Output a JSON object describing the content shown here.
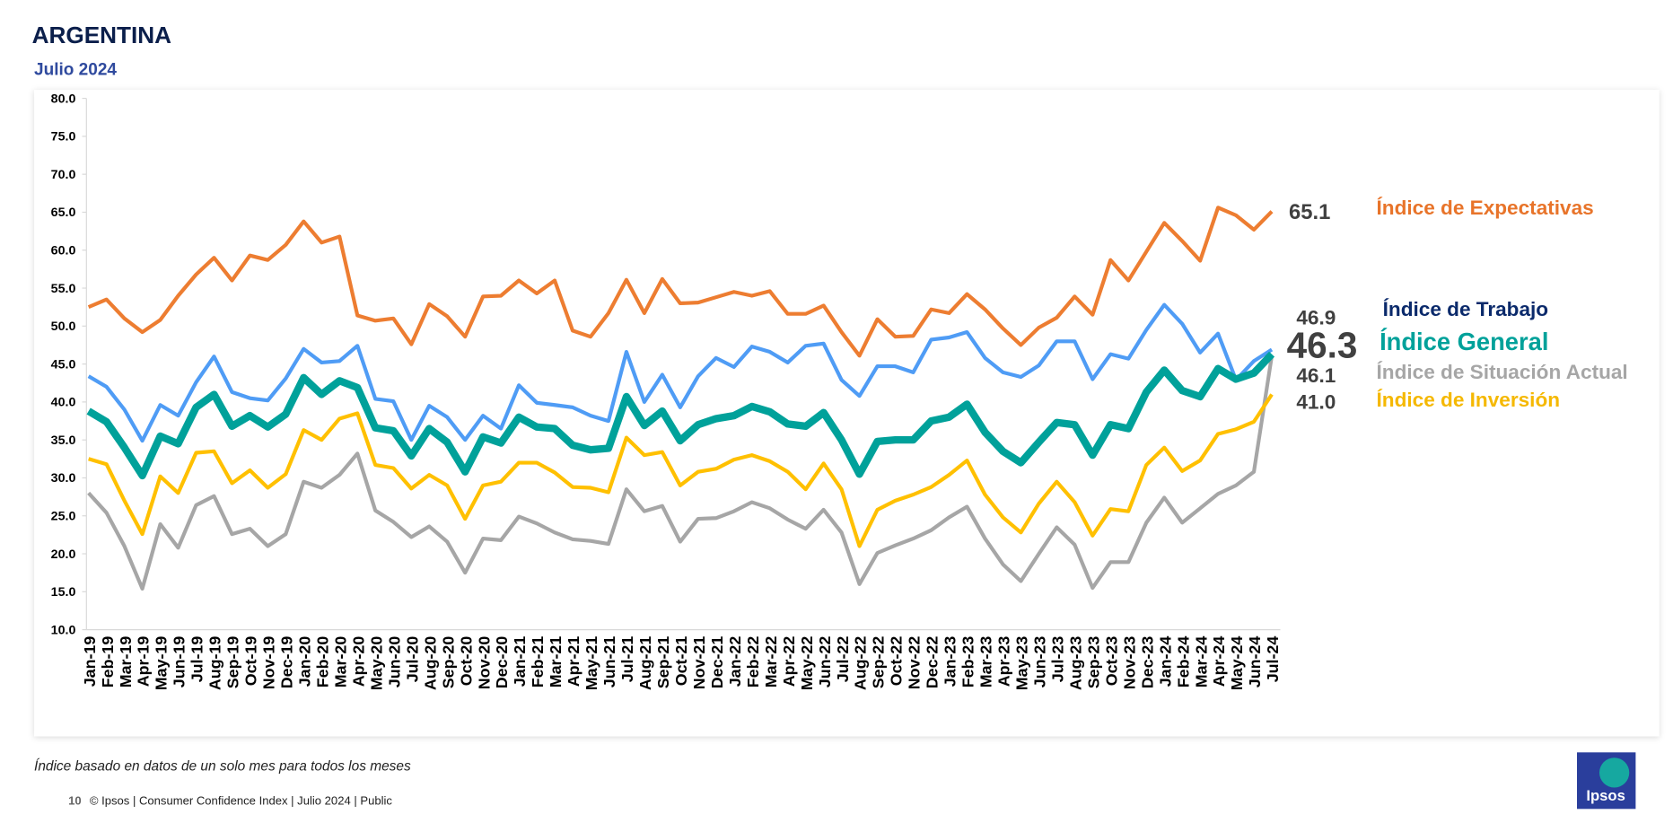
{
  "header": {
    "title": "ARGENTINA",
    "subtitle": "Julio 2024"
  },
  "chart_data": {
    "type": "line",
    "categories": [
      "Jan-19",
      "Feb-19",
      "Mar-19",
      "Apr-19",
      "May-19",
      "Jun-19",
      "Jul-19",
      "Aug-19",
      "Sep-19",
      "Oct-19",
      "Nov-19",
      "Dec-19",
      "Jan-20",
      "Feb-20",
      "Mar-20",
      "Apr-20",
      "May-20",
      "Jun-20",
      "Jul-20",
      "Aug-20",
      "Sep-20",
      "Oct-20",
      "Nov-20",
      "Dec-20",
      "Jan-21",
      "Feb-21",
      "Mar-21",
      "Apr-21",
      "May-21",
      "Jun-21",
      "Jul-21",
      "Aug-21",
      "Sep-21",
      "Oct-21",
      "Nov-21",
      "Dec-21",
      "Jan-22",
      "Feb-22",
      "Mar-22",
      "Apr-22",
      "May-22",
      "Jun-22",
      "Jul-22",
      "Aug-22",
      "Sep-22",
      "Oct-22",
      "Nov-22",
      "Dec-22",
      "Jan-23",
      "Feb-23",
      "Mar-23",
      "Apr-23",
      "May-23",
      "Jun-23",
      "Jul-23",
      "Aug-23",
      "Sep-23",
      "Oct-23",
      "Nov-23",
      "Dec-23",
      "Jan-24",
      "Feb-24",
      "Mar-24",
      "Apr-24",
      "May-24",
      "Jun-24",
      "Jul-24"
    ],
    "series": [
      {
        "name": "Índice de Expectativas",
        "color": "#ed7d31",
        "values": [
          52.5,
          53.5,
          51,
          49.2,
          50.8,
          54,
          56.8,
          59,
          56,
          59.3,
          58.7,
          60.7,
          63.8,
          61,
          61.8,
          51.4,
          50.7,
          51,
          47.6,
          52.9,
          51.3,
          48.6,
          53.9,
          54,
          56,
          54.3,
          56,
          49.4,
          48.6,
          51.7,
          56.1,
          51.7,
          56.2,
          53,
          53.1,
          53.8,
          54.5,
          54,
          54.6,
          51.6,
          51.6,
          52.7,
          49.2,
          46.1,
          50.9,
          48.6,
          48.7,
          52.2,
          51.7,
          54.2,
          52.2,
          49.7,
          47.5,
          49.8,
          51.1,
          53.9,
          51.5,
          58.7,
          56,
          59.8,
          63.6,
          61.2,
          58.6,
          65.6,
          64.6,
          62.7,
          65.1
        ]
      },
      {
        "name": "Índice de Trabajo",
        "color": "#4f9cf5",
        "values": [
          43.4,
          42,
          39,
          34.9,
          39.6,
          38.2,
          42.6,
          46,
          41.3,
          40.5,
          40.2,
          43.1,
          47,
          45.2,
          45.4,
          47.4,
          40.4,
          40.1,
          35,
          39.5,
          38,
          35,
          38.2,
          36.5,
          42.2,
          39.9,
          39.6,
          39.3,
          38.2,
          37.5,
          46.6,
          40,
          43.6,
          39.3,
          43.4,
          45.8,
          44.6,
          47.3,
          46.6,
          45.2,
          47.4,
          47.7,
          42.9,
          40.8,
          44.7,
          44.7,
          43.9,
          48.2,
          48.5,
          49.2,
          45.8,
          43.9,
          43.3,
          44.8,
          48,
          48,
          43,
          46.3,
          45.7,
          49.5,
          52.8,
          50.3,
          46.5,
          49,
          42.9,
          45.4,
          46.9
        ]
      },
      {
        "name": "Índice General",
        "color": "#00a19a",
        "values": [
          38.8,
          37.4,
          34,
          30.3,
          35.5,
          34.5,
          39.3,
          41,
          36.8,
          38.2,
          36.7,
          38.4,
          43.2,
          41,
          42.8,
          41.9,
          36.6,
          36.2,
          32.9,
          36.5,
          34.7,
          30.8,
          35.4,
          34.6,
          38,
          36.7,
          36.5,
          34.3,
          33.7,
          33.9,
          40.7,
          36.9,
          38.8,
          34.9,
          37,
          37.8,
          38.2,
          39.4,
          38.7,
          37.1,
          36.8,
          38.6,
          35,
          30.5,
          34.8,
          35,
          35,
          37.5,
          38,
          39.7,
          36,
          33.5,
          32,
          34.7,
          37.3,
          37,
          33,
          37,
          36.5,
          41.3,
          44.2,
          41.5,
          40.7,
          44.4,
          43,
          43.8,
          46.3
        ]
      },
      {
        "name": "Índice de Situación Actual",
        "color": "#a6a6a6",
        "values": [
          28,
          25.4,
          21,
          15.4,
          23.9,
          20.8,
          26.4,
          27.6,
          22.6,
          23.3,
          21,
          22.6,
          29.5,
          28.7,
          30.4,
          33.2,
          25.7,
          24.2,
          22.2,
          23.6,
          21.6,
          17.5,
          22,
          21.8,
          24.9,
          24,
          22.8,
          21.9,
          21.7,
          21.3,
          28.5,
          25.6,
          26.3,
          21.6,
          24.6,
          24.7,
          25.6,
          26.8,
          26,
          24.5,
          23.3,
          25.8,
          22.8,
          16,
          20.1,
          21.1,
          22,
          23.1,
          24.8,
          26.2,
          22,
          18.6,
          16.4,
          20,
          23.5,
          21.2,
          15.5,
          18.9,
          18.9,
          24.1,
          27.4,
          24.1,
          26,
          27.9,
          29,
          30.8,
          46.1
        ]
      },
      {
        "name": "Índice de Inversión",
        "color": "#ffc000",
        "values": [
          32.5,
          31.8,
          27,
          22.6,
          30.2,
          28,
          33.3,
          33.5,
          29.3,
          31,
          28.7,
          30.5,
          36.3,
          35,
          37.8,
          38.5,
          31.7,
          31.3,
          28.6,
          30.4,
          29,
          24.6,
          29,
          29.5,
          32,
          32,
          30.7,
          28.8,
          28.7,
          28.1,
          35.3,
          33,
          33.4,
          29,
          30.8,
          31.2,
          32.4,
          33,
          32.2,
          30.8,
          28.5,
          31.9,
          28.5,
          21,
          25.8,
          27,
          27.8,
          28.8,
          30.4,
          32.3,
          27.8,
          24.8,
          22.8,
          26.6,
          29.5,
          26.8,
          22.4,
          25.9,
          25.6,
          31.7,
          34,
          30.9,
          32.3,
          35.8,
          36.4,
          37.4,
          41
        ],
        "value_labels": [
          null,
          null,
          null,
          null,
          null,
          null,
          null,
          null,
          null,
          null,
          null,
          null,
          null,
          null,
          null,
          null,
          null,
          null,
          null,
          null,
          null,
          null,
          null,
          null,
          null,
          null,
          null,
          null,
          null,
          null,
          null,
          null,
          null,
          null,
          null,
          null,
          null,
          null,
          null,
          null,
          null,
          null,
          null,
          null,
          null,
          null,
          null,
          null,
          null,
          null,
          null,
          null,
          null,
          null,
          null,
          null,
          null,
          null,
          null,
          null,
          null,
          null,
          null,
          null,
          null,
          null,
          "41.0"
        ]
      }
    ],
    "ylim": [
      10,
      80
    ],
    "yticks": [
      {
        "value": 10,
        "label": "10.0"
      },
      {
        "value": 15,
        "label": "15.0"
      },
      {
        "value": 20,
        "label": "20.0"
      },
      {
        "value": 25,
        "label": "25.0"
      },
      {
        "value": 30,
        "label": "30.0"
      },
      {
        "value": 35,
        "label": "35.0"
      },
      {
        "value": 40,
        "label": "40.0"
      },
      {
        "value": 45,
        "label": "45.0"
      },
      {
        "value": 50,
        "label": "50.0"
      },
      {
        "value": 55,
        "label": "55.0"
      },
      {
        "value": 60,
        "label": "60.0"
      },
      {
        "value": 65,
        "label": "65.0"
      },
      {
        "value": 70,
        "label": "70.0"
      },
      {
        "value": 75,
        "label": "75.0"
      },
      {
        "value": 80,
        "label": "80.0"
      }
    ],
    "grid": false
  },
  "footnote": "Índice basado en datos de un solo mes para todos los meses",
  "footer": {
    "page": "10",
    "text": "© Ipsos | Consumer Confidence Index | Julio 2024 | Public"
  },
  "logo": "Ipsos"
}
